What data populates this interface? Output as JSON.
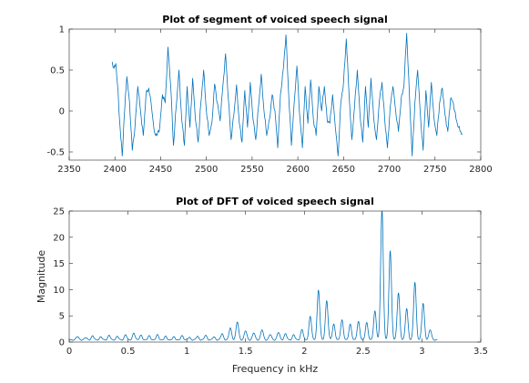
{
  "colors": {
    "series": "#0072bd",
    "axes": "#262626",
    "background": "#ffffff"
  },
  "chart_data": [
    {
      "type": "line",
      "title": "Plot of segment of voiced speech signal",
      "xlabel": "",
      "ylabel": "",
      "xlim": [
        2350,
        2800
      ],
      "ylim": [
        -0.6,
        1
      ],
      "xticks": [
        2350,
        2400,
        2450,
        2500,
        2550,
        2600,
        2650,
        2700,
        2750,
        2800
      ],
      "xtick_labels": [
        "2350",
        "2400",
        "2450",
        "2500",
        "2550",
        "2600",
        "2650",
        "2700",
        "2750",
        "2800"
      ],
      "yticks": [
        -0.5,
        0,
        0.5,
        1
      ],
      "ytick_labels": [
        "-0.5",
        "0",
        "0.5",
        "1"
      ],
      "grid": false,
      "x_range": [
        2397,
        2780
      ],
      "anchors": [
        [
          2397,
          0.6
        ],
        [
          2399,
          0.52
        ],
        [
          2401,
          0.58
        ],
        [
          2403,
          0.3
        ],
        [
          2405,
          -0.1
        ],
        [
          2408,
          -0.55
        ],
        [
          2410,
          -0.1
        ],
        [
          2413,
          0.42
        ],
        [
          2416,
          0.1
        ],
        [
          2419,
          -0.48
        ],
        [
          2422,
          -0.18
        ],
        [
          2425,
          0.3
        ],
        [
          2428,
          0.0
        ],
        [
          2431,
          -0.3
        ],
        [
          2434,
          0.2
        ],
        [
          2437,
          0.28
        ],
        [
          2440,
          0.05
        ],
        [
          2443,
          -0.25
        ],
        [
          2446,
          -0.3
        ],
        [
          2449,
          -0.2
        ],
        [
          2452,
          0.2
        ],
        [
          2455,
          0.1
        ],
        [
          2458,
          0.78
        ],
        [
          2461,
          0.3
        ],
        [
          2464,
          -0.42
        ],
        [
          2467,
          0.05
        ],
        [
          2470,
          0.5
        ],
        [
          2473,
          -0.1
        ],
        [
          2476,
          -0.42
        ],
        [
          2479,
          0.3
        ],
        [
          2482,
          -0.2
        ],
        [
          2485,
          0.4
        ],
        [
          2488,
          -0.1
        ],
        [
          2491,
          -0.38
        ],
        [
          2494,
          0.1
        ],
        [
          2497,
          0.5
        ],
        [
          2500,
          0.0
        ],
        [
          2503,
          -0.3
        ],
        [
          2506,
          -0.15
        ],
        [
          2509,
          0.33
        ],
        [
          2512,
          0.1
        ],
        [
          2515,
          -0.12
        ],
        [
          2518,
          0.3
        ],
        [
          2521,
          0.7
        ],
        [
          2524,
          0.15
        ],
        [
          2527,
          -0.35
        ],
        [
          2530,
          -0.05
        ],
        [
          2533,
          0.32
        ],
        [
          2536,
          -0.15
        ],
        [
          2539,
          -0.38
        ],
        [
          2542,
          0.25
        ],
        [
          2545,
          -0.2
        ],
        [
          2548,
          0.35
        ],
        [
          2551,
          -0.1
        ],
        [
          2554,
          -0.35
        ],
        [
          2557,
          0.05
        ],
        [
          2560,
          0.45
        ],
        [
          2563,
          0.0
        ],
        [
          2566,
          -0.3
        ],
        [
          2569,
          -0.1
        ],
        [
          2572,
          0.2
        ],
        [
          2575,
          0.0
        ],
        [
          2578,
          -0.45
        ],
        [
          2581,
          0.2
        ],
        [
          2584,
          0.5
        ],
        [
          2587,
          0.93
        ],
        [
          2590,
          0.2
        ],
        [
          2593,
          -0.42
        ],
        [
          2596,
          0.1
        ],
        [
          2599,
          0.55
        ],
        [
          2602,
          -0.05
        ],
        [
          2605,
          -0.45
        ],
        [
          2608,
          0.3
        ],
        [
          2611,
          -0.15
        ],
        [
          2614,
          0.38
        ],
        [
          2617,
          -0.1
        ],
        [
          2620,
          -0.3
        ],
        [
          2623,
          0.3
        ],
        [
          2626,
          0.0
        ],
        [
          2629,
          0.3
        ],
        [
          2632,
          -0.1
        ],
        [
          2635,
          -0.15
        ],
        [
          2638,
          0.2
        ],
        [
          2641,
          -0.2
        ],
        [
          2644,
          -0.55
        ],
        [
          2647,
          0.1
        ],
        [
          2650,
          0.35
        ],
        [
          2653,
          0.88
        ],
        [
          2656,
          0.2
        ],
        [
          2659,
          -0.35
        ],
        [
          2662,
          0.05
        ],
        [
          2665,
          0.5
        ],
        [
          2668,
          -0.05
        ],
        [
          2671,
          -0.38
        ],
        [
          2674,
          0.3
        ],
        [
          2677,
          -0.2
        ],
        [
          2680,
          0.4
        ],
        [
          2683,
          -0.1
        ],
        [
          2686,
          -0.35
        ],
        [
          2689,
          0.1
        ],
        [
          2692,
          0.35
        ],
        [
          2695,
          -0.1
        ],
        [
          2698,
          -0.45
        ],
        [
          2701,
          0.05
        ],
        [
          2704,
          0.3
        ],
        [
          2707,
          0.0
        ],
        [
          2710,
          -0.25
        ],
        [
          2713,
          0.15
        ],
        [
          2716,
          0.3
        ],
        [
          2719,
          0.95
        ],
        [
          2722,
          0.2
        ],
        [
          2725,
          -0.55
        ],
        [
          2728,
          0.1
        ],
        [
          2731,
          0.5
        ],
        [
          2734,
          -0.05
        ],
        [
          2737,
          -0.48
        ],
        [
          2740,
          0.25
        ],
        [
          2743,
          -0.2
        ],
        [
          2746,
          0.35
        ],
        [
          2749,
          -0.1
        ],
        [
          2752,
          -0.3
        ],
        [
          2755,
          0.1
        ],
        [
          2758,
          0.28
        ],
        [
          2761,
          -0.05
        ],
        [
          2764,
          -0.25
        ],
        [
          2767,
          0.15
        ],
        [
          2770,
          0.1
        ],
        [
          2773,
          -0.1
        ],
        [
          2776,
          -0.2
        ],
        [
          2778,
          -0.25
        ],
        [
          2780,
          -0.28
        ]
      ]
    },
    {
      "type": "line",
      "title": "Plot of DFT of voiced speech signal",
      "xlabel": "Frequency in kHz",
      "ylabel": "Magnitude",
      "xlim": [
        0,
        3.5
      ],
      "ylim": [
        0,
        25
      ],
      "xticks": [
        0,
        0.5,
        1,
        1.5,
        2,
        2.5,
        3,
        3.5
      ],
      "xtick_labels": [
        "0",
        "0.5",
        "1",
        "1.5",
        "2",
        "2.5",
        "3",
        "3.5"
      ],
      "yticks": [
        0,
        5,
        10,
        15,
        20,
        25
      ],
      "ytick_labels": [
        "0",
        "5",
        "10",
        "15",
        "20",
        "25"
      ],
      "grid": false,
      "x_range": [
        0,
        3.13
      ],
      "baseline": 0.3,
      "harmonic_spacing_khz": 0.068,
      "harmonic_peaks": [
        [
          0.07,
          0.7
        ],
        [
          0.14,
          0.5
        ],
        [
          0.2,
          0.8
        ],
        [
          0.27,
          0.6
        ],
        [
          0.34,
          0.9
        ],
        [
          0.41,
          0.7
        ],
        [
          0.48,
          1.0
        ],
        [
          0.55,
          1.3
        ],
        [
          0.61,
          0.9
        ],
        [
          0.68,
          0.8
        ],
        [
          0.75,
          1.0
        ],
        [
          0.82,
          0.7
        ],
        [
          0.89,
          0.6
        ],
        [
          0.96,
          0.8
        ],
        [
          1.02,
          0.5
        ],
        [
          1.09,
          0.7
        ],
        [
          1.16,
          0.9
        ],
        [
          1.23,
          0.6
        ],
        [
          1.3,
          1.2
        ],
        [
          1.37,
          2.3
        ],
        [
          1.43,
          3.5
        ],
        [
          1.5,
          1.8
        ],
        [
          1.57,
          1.4
        ],
        [
          1.64,
          2.0
        ],
        [
          1.71,
          1.1
        ],
        [
          1.78,
          1.5
        ],
        [
          1.84,
          1.2
        ],
        [
          1.91,
          1.0
        ],
        [
          1.98,
          2.0
        ],
        [
          2.05,
          4.5
        ],
        [
          2.12,
          9.5
        ],
        [
          2.19,
          7.5
        ],
        [
          2.25,
          3.0
        ],
        [
          2.32,
          3.8
        ],
        [
          2.39,
          3.0
        ],
        [
          2.46,
          3.5
        ],
        [
          2.53,
          3.3
        ],
        [
          2.6,
          5.5
        ],
        [
          2.66,
          25.0
        ],
        [
          2.73,
          17.0
        ],
        [
          2.8,
          9.0
        ],
        [
          2.87,
          6.0
        ],
        [
          2.94,
          11.0
        ],
        [
          3.01,
          7.0
        ],
        [
          3.07,
          2.0
        ]
      ]
    }
  ]
}
